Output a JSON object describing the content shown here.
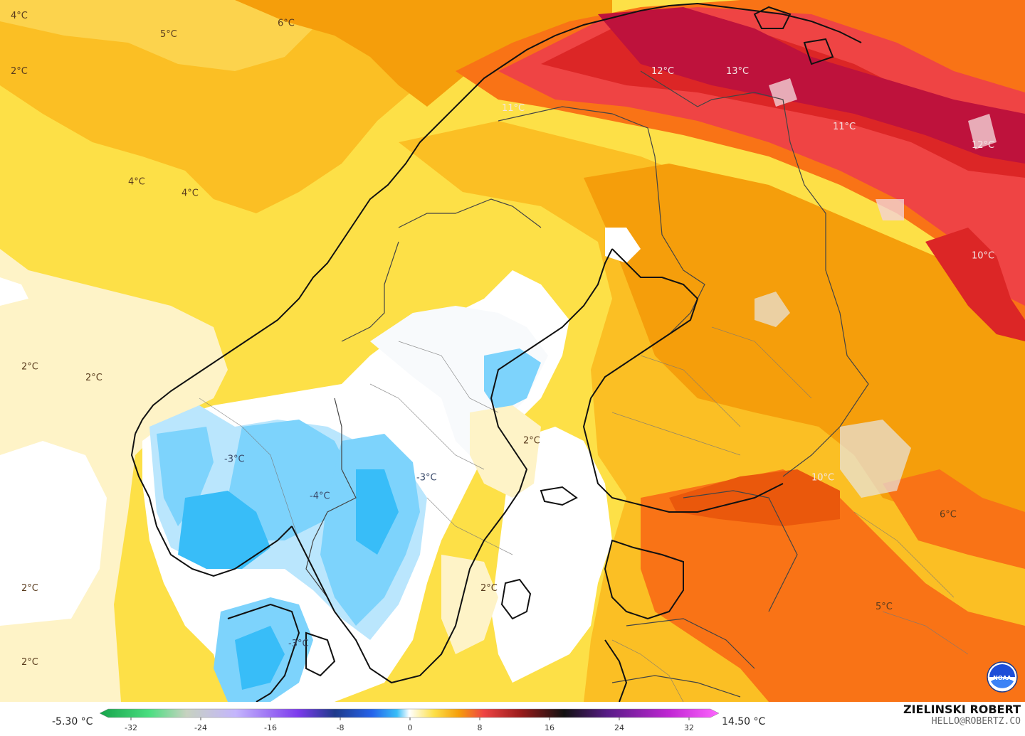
{
  "map": {
    "temperature_labels": [
      {
        "text": "4°C",
        "lon": -4.5,
        "lat": 73.0
      },
      {
        "text": "5°C",
        "lon": 2.5,
        "lat": 72.5
      },
      {
        "text": "6°C",
        "lon": 8.0,
        "lat": 72.8
      },
      {
        "text": "2°C",
        "lon": -4.5,
        "lat": 71.5
      },
      {
        "text": "4°C",
        "lon": 1.0,
        "lat": 68.5
      },
      {
        "text": "4°C",
        "lon": 3.5,
        "lat": 68.2
      },
      {
        "text": "11°C",
        "lon": 18.5,
        "lat": 70.5
      },
      {
        "text": "12°C",
        "lon": 25.5,
        "lat": 71.5
      },
      {
        "text": "13°C",
        "lon": 29.0,
        "lat": 71.5
      },
      {
        "text": "11°C",
        "lon": 34.0,
        "lat": 70.0
      },
      {
        "text": "12°C",
        "lon": 40.5,
        "lat": 69.5
      },
      {
        "text": "10°C",
        "lon": 40.5,
        "lat": 66.5
      },
      {
        "text": "2°C",
        "lon": -4.0,
        "lat": 63.5
      },
      {
        "text": "2°C",
        "lon": -1.0,
        "lat": 63.2
      },
      {
        "text": "-3°C",
        "lon": 5.5,
        "lat": 61.0
      },
      {
        "text": "-4°C",
        "lon": 9.5,
        "lat": 60.0
      },
      {
        "text": "-3°C",
        "lon": 14.5,
        "lat": 60.5
      },
      {
        "text": "2°C",
        "lon": 19.5,
        "lat": 61.5
      },
      {
        "text": "10°C",
        "lon": 33.0,
        "lat": 60.5
      },
      {
        "text": "6°C",
        "lon": 39.0,
        "lat": 59.5
      },
      {
        "text": "2°C",
        "lon": -4.0,
        "lat": 57.5
      },
      {
        "text": "2°C",
        "lon": 17.5,
        "lat": 57.5
      },
      {
        "text": "5°C",
        "lon": 36.0,
        "lat": 57.0
      },
      {
        "text": "2°C",
        "lon": -4.0,
        "lat": 55.5
      },
      {
        "text": "-3°C",
        "lon": 8.5,
        "lat": 56.0
      }
    ],
    "colors": {
      "sea_mild": "#fde68a",
      "warm_orange": "#f59e0b",
      "hot_red": "#dc2626",
      "very_hot": "#b91c44",
      "cold_blue": "#38bdf8",
      "coastline": "#111111",
      "border": "#444444"
    }
  },
  "legend": {
    "min_label": "-5.30 °C",
    "max_label": "14.50 °C",
    "ticks": [
      "-32",
      "-24",
      "-16",
      "-8",
      "0",
      "8",
      "16",
      "24",
      "32"
    ],
    "range": [
      -32,
      32
    ]
  },
  "credit": {
    "name": "ZIELINSKI ROBERT",
    "email": "HELLO@ROBERTZ.CO"
  },
  "logo": {
    "text": "NOAA",
    "icon": "noaa-logo-icon"
  }
}
